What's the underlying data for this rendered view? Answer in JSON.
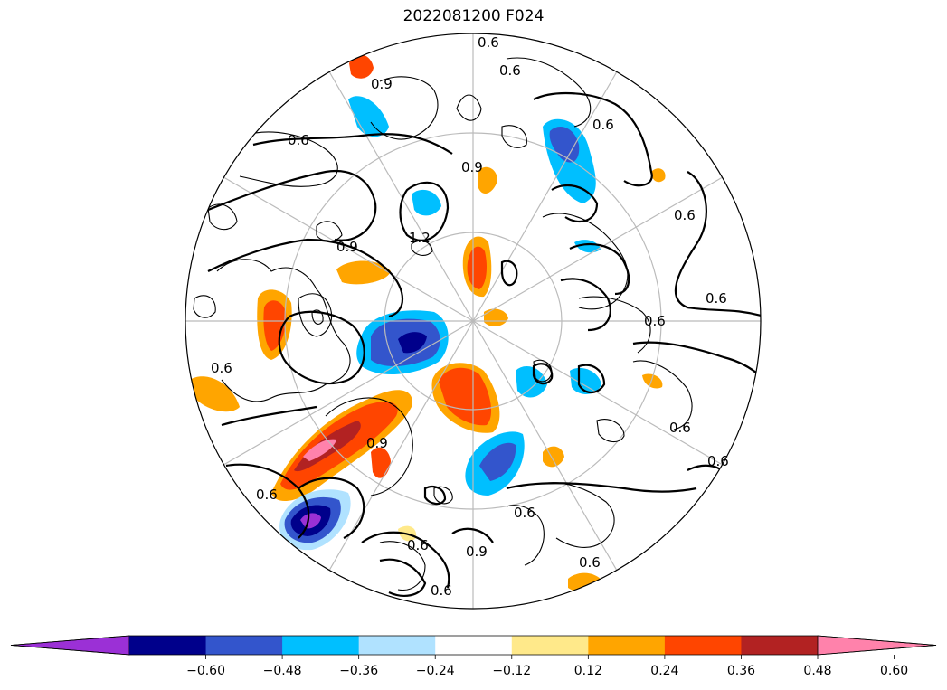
{
  "title": "2022081200 F024",
  "colorbar": {
    "ticks": [
      "−0.60",
      "−0.48",
      "−0.36",
      "−0.24",
      "−0.12",
      "0.12",
      "0.24",
      "0.36",
      "0.48",
      "0.60"
    ],
    "colors": [
      "#9b30d6",
      "#00008b",
      "#3355cc",
      "#00bfff",
      "#b0e2ff",
      "#ffffff",
      "#ffe98a",
      "#ffa500",
      "#ff4500",
      "#b22222",
      "#ff82ab"
    ],
    "extend": "both"
  },
  "map": {
    "projection": "north-polar-stereographic",
    "coastline_color": "#000000",
    "gridline_color": "#bbbbbb",
    "contour_labels": [
      {
        "text": "0.6"
      },
      {
        "text": "0.6"
      },
      {
        "text": "0.6"
      },
      {
        "text": "0.6"
      },
      {
        "text": "0.6"
      },
      {
        "text": "0.6"
      },
      {
        "text": "0.6"
      },
      {
        "text": "0.6"
      },
      {
        "text": "0.6"
      },
      {
        "text": "0.6"
      },
      {
        "text": "0.6"
      },
      {
        "text": "0.6"
      },
      {
        "text": "0.6"
      },
      {
        "text": "0.6"
      },
      {
        "text": "0.6"
      },
      {
        "text": "0.9"
      },
      {
        "text": "0.9"
      },
      {
        "text": "0.9"
      },
      {
        "text": "0.9"
      },
      {
        "text": "0.9"
      },
      {
        "text": "1.2"
      }
    ]
  }
}
